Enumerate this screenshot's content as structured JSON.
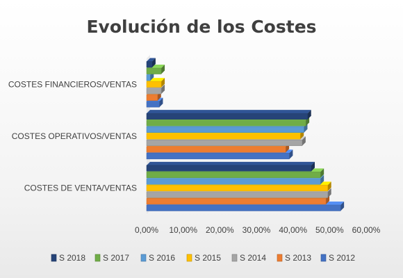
{
  "chart_data": {
    "type": "bar",
    "orientation": "horizontal",
    "title": "Evolución de los Costes",
    "categories": [
      "COSTES DE VENTA/VENTAS",
      "COSTES OPERATIVOS/VENTAS",
      "COSTES FINANCIEROS/VENTAS"
    ],
    "series": [
      {
        "name": "S 2012",
        "color": "#4472c4",
        "values": [
          0.53,
          0.39,
          0.035
        ]
      },
      {
        "name": "S 2013",
        "color": "#ed7d31",
        "values": [
          0.49,
          0.38,
          0.03
        ]
      },
      {
        "name": "S 2014",
        "color": "#a5a5a5",
        "values": [
          0.495,
          0.425,
          0.04
        ]
      },
      {
        "name": "S 2015",
        "color": "#ffc000",
        "values": [
          0.495,
          0.42,
          0.04
        ]
      },
      {
        "name": "S 2016",
        "color": "#5b9bd5",
        "values": [
          0.475,
          0.43,
          0.01
        ]
      },
      {
        "name": "S 2017",
        "color": "#70ad47",
        "values": [
          0.475,
          0.435,
          0.04
        ]
      },
      {
        "name": "S 2018",
        "color": "#264478",
        "values": [
          0.45,
          0.44,
          0.015
        ]
      }
    ],
    "xlim": [
      0,
      0.6
    ],
    "xticks": [
      "0,00%",
      "10,00%",
      "20,00%",
      "30,00%",
      "40,00%",
      "50,00%",
      "60,00%"
    ],
    "xlabel": "",
    "ylabel": "",
    "grid": false,
    "legend_position": "bottom",
    "legend_order": [
      "S 2018",
      "S 2017",
      "S 2016",
      "S 2015",
      "S 2014",
      "S 2013",
      "S 2012"
    ],
    "style": "3d-bars"
  }
}
